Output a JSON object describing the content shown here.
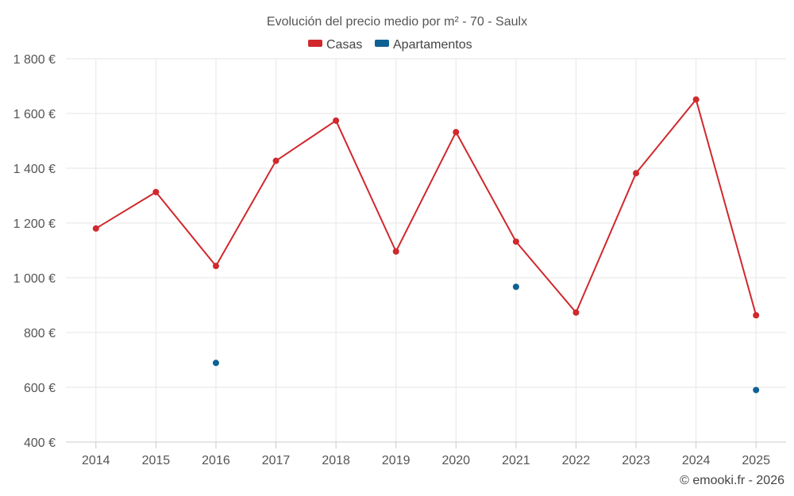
{
  "chart_data": {
    "type": "line",
    "title": "Evolución del precio medio por m² - 70 - Saulx",
    "categories": [
      "2014",
      "2015",
      "2016",
      "2017",
      "2018",
      "2019",
      "2020",
      "2021",
      "2022",
      "2023",
      "2024",
      "2025"
    ],
    "series": [
      {
        "name": "Casas",
        "color": "#d0282c",
        "values": [
          1180,
          1313,
          1043,
          1427,
          1574,
          1096,
          1532,
          1132,
          873,
          1382,
          1651,
          863
        ]
      },
      {
        "name": "Apartamentos",
        "color": "#0e6195",
        "values": [
          null,
          null,
          689,
          null,
          null,
          null,
          null,
          967,
          null,
          null,
          null,
          590
        ]
      }
    ],
    "ylim": [
      400,
      1800
    ],
    "yticks": [
      400,
      600,
      800,
      1000,
      1200,
      1400,
      1600,
      1800
    ],
    "ytick_labels": [
      "400 €",
      "600 €",
      "800 €",
      "1 000 €",
      "1 200 €",
      "1 400 €",
      "1 600 €",
      "1 800 €"
    ],
    "legend_position": "top-center",
    "grid": true
  },
  "credit": "© emooki.fr - 2026"
}
